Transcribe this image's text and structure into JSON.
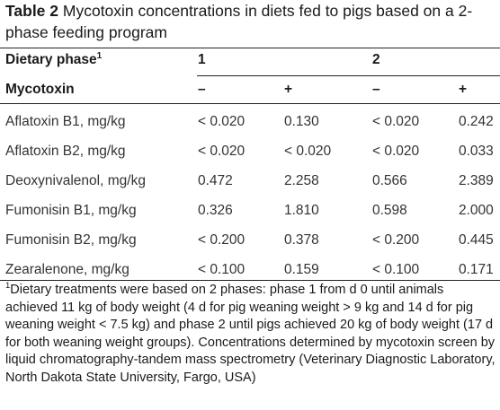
{
  "caption": {
    "label": "Table 2",
    "text": " Mycotoxin concentrations in diets fed to pigs based on a 2-phase feeding program"
  },
  "header": {
    "dietary_phase_label": "Dietary phase",
    "dietary_phase_footnote_mark": "1",
    "phase_1": "1",
    "phase_2": "2",
    "mycotoxin_label": "Mycotoxin",
    "minus": "–",
    "plus": "+"
  },
  "rows": [
    {
      "name": "Aflatoxin B1, mg/kg",
      "p1_minus": "< 0.020",
      "p1_plus": "0.130",
      "p2_minus": "< 0.020",
      "p2_plus": "0.242"
    },
    {
      "name": "Aflatoxin B2, mg/kg",
      "p1_minus": "< 0.020",
      "p1_plus": "< 0.020",
      "p2_minus": "< 0.020",
      "p2_plus": "0.033"
    },
    {
      "name": "Deoxynivalenol, mg/kg",
      "p1_minus": "0.472",
      "p1_plus": "2.258",
      "p2_minus": "0.566",
      "p2_plus": "2.389"
    },
    {
      "name": "Fumonisin B1, mg/kg",
      "p1_minus": "0.326",
      "p1_plus": "1.810",
      "p2_minus": "0.598",
      "p2_plus": "2.000"
    },
    {
      "name": "Fumonisin B2, mg/kg",
      "p1_minus": "< 0.200",
      "p1_plus": "0.378",
      "p2_minus": "< 0.200",
      "p2_plus": "0.445"
    },
    {
      "name": "Zearalenone, mg/kg",
      "p1_minus": "< 0.100",
      "p1_plus": "0.159",
      "p2_minus": "< 0.100",
      "p2_plus": "0.171"
    }
  ],
  "footnote": {
    "mark": "1",
    "text": "Dietary treatments were based on 2 phases: phase 1 from d 0 until animals achieved 11 kg of body weight (4 d for pig weaning weight > 9 kg and 14 d for pig weaning weight < 7.5 kg) and phase 2 until pigs achieved 20 kg of body weight (17 d for both weaning weight groups). Concentrations determined by mycotoxin screen by liquid chromatography-tandem mass spectrometry (Veterinary Diagnostic Laboratory, North Dakota State University, Fargo, USA)"
  }
}
